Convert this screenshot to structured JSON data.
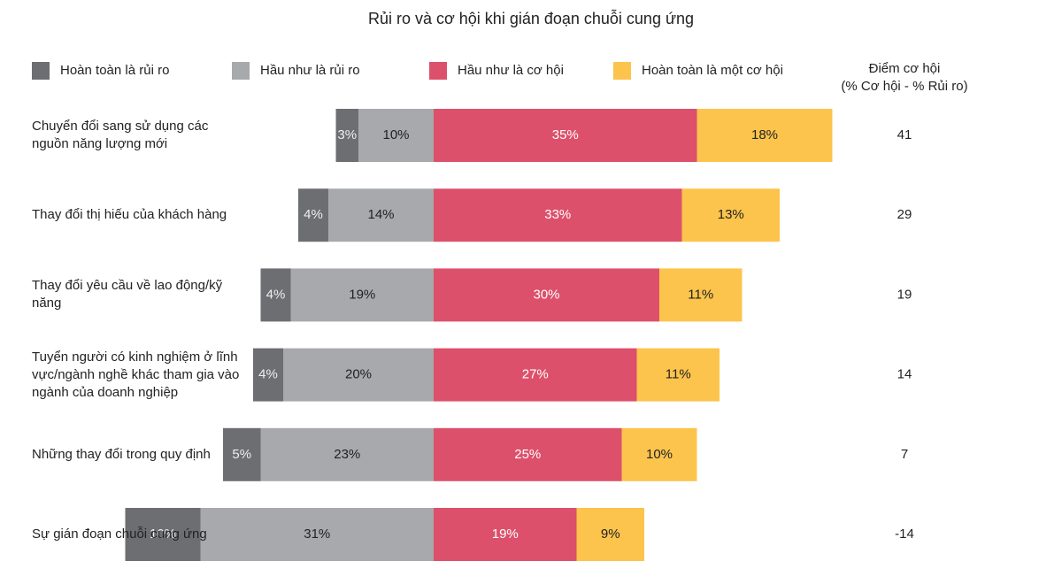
{
  "chart_data": {
    "type": "bar",
    "title": "Rủi ro và cơ hội khi gián đoạn chuỗi cung ứng",
    "categories": [
      "Chuyển đổi sang sử dụng các nguồn năng lượng mới",
      "Thay đổi thị hiếu của khách hàng",
      "Thay đổi yêu cầu về lao động/kỹ năng",
      "Tuyển người có kinh nghiệm ở lĩnh vực/ngành nghề khác tham gia vào ngành của doanh nghiệp",
      "Những thay đổi trong quy định",
      "Sự gián đoạn chuỗi cung ứng"
    ],
    "series": [
      {
        "name": "Hoàn toàn là rủi ro",
        "color": "#6d6e71",
        "values": [
          3,
          4,
          4,
          4,
          5,
          10
        ],
        "value_labels": [
          "3%",
          "4%",
          "4%",
          "4%",
          "5%",
          "10%"
        ]
      },
      {
        "name": "Hầu như là rủi ro",
        "color": "#a7a9ac",
        "values": [
          10,
          14,
          19,
          20,
          23,
          31
        ],
        "value_labels": [
          "10%",
          "14%",
          "19%",
          "20%",
          "23%",
          "31%"
        ]
      },
      {
        "name": "Hầu như là cơ hội",
        "color": "#dc506b",
        "values": [
          35,
          33,
          30,
          27,
          25,
          19
        ],
        "value_labels": [
          "35%",
          "33%",
          "30%",
          "27%",
          "25%",
          "19%"
        ]
      },
      {
        "name": "Hoàn toàn là một cơ hội",
        "color": "#fcc44c",
        "values": [
          18,
          13,
          11,
          11,
          10,
          9
        ],
        "value_labels": [
          "18%",
          "13%",
          "11%",
          "11%",
          "10%",
          "9%"
        ]
      }
    ],
    "score_label": [
      "Điểm cơ hội",
      "(% Cơ hội - % Rủi ro)"
    ],
    "scores": [
      41,
      29,
      19,
      14,
      7,
      -14
    ]
  }
}
